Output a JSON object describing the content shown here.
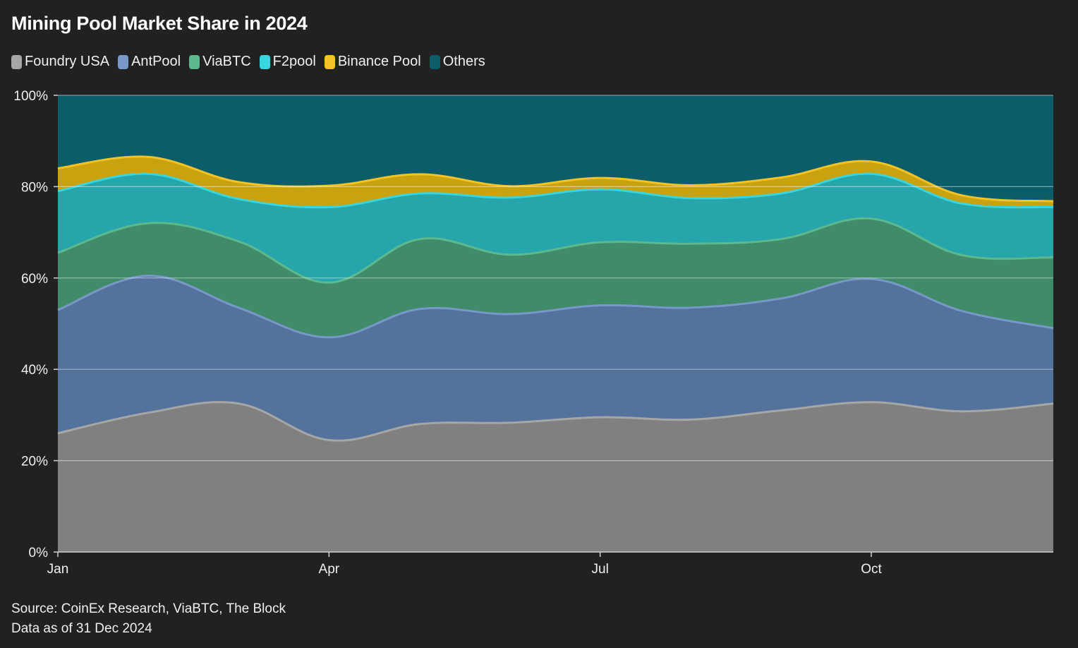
{
  "title": "Mining Pool Market Share in 2024",
  "footer": {
    "source": "Source: CoinEx Research, ViaBTC, The Block",
    "data_as_of": "Data as of 31 Dec 2024"
  },
  "chart_data": {
    "type": "area",
    "stacked": true,
    "title": "Mining Pool Market Share in 2024",
    "xlabel": "",
    "ylabel": "",
    "ylim": [
      0,
      100
    ],
    "y_ticks": [
      "0%",
      "20%",
      "40%",
      "60%",
      "80%",
      "100%"
    ],
    "x_ticks": [
      "Jan",
      "Apr",
      "Jul",
      "Oct"
    ],
    "x_tick_months": [
      1,
      4,
      7,
      10
    ],
    "x": [
      "Jan",
      "Feb",
      "Mar",
      "Apr",
      "May",
      "Jun",
      "Jul",
      "Aug",
      "Sep",
      "Oct",
      "Nov",
      "Dec"
    ],
    "x_months": [
      1,
      2,
      3,
      4,
      5,
      6,
      7,
      8,
      9,
      10,
      11,
      12
    ],
    "grid": true,
    "legend_position": "top-left",
    "series": [
      {
        "name": "Foundry USA",
        "color": "#808080",
        "line": "#a6a6a6",
        "values": [
          26,
          30.5,
          32.5,
          24.5,
          28,
          28.3,
          29.5,
          29,
          31,
          32.8,
          30.8,
          32.5
        ]
      },
      {
        "name": "AntPool",
        "color": "#53729c",
        "line": "#7898c8",
        "values": [
          27,
          30,
          21,
          22.5,
          25.2,
          23.8,
          24.5,
          24.5,
          24.5,
          27,
          22,
          16.5
        ]
      },
      {
        "name": "ViaBTC",
        "color": "#3f8b6a",
        "line": "#5cb98d",
        "values": [
          12.5,
          11.5,
          14.5,
          12,
          15.3,
          13,
          13.8,
          14,
          13,
          13.2,
          12.2,
          15.5
        ]
      },
      {
        "name": "F2pool",
        "color": "#26a5ab",
        "line": "#39d5df",
        "values": [
          13.5,
          10.8,
          9.3,
          16.5,
          10,
          12.5,
          11.6,
          10,
          10,
          9.8,
          11.3,
          11
        ]
      },
      {
        "name": "Binance Pool",
        "color": "#c9a210",
        "line": "#f3c226",
        "values": [
          5,
          3.7,
          3.7,
          4.7,
          4.2,
          2.5,
          2.5,
          2.8,
          3.5,
          2.7,
          1.8,
          1.3
        ]
      },
      {
        "name": "Others",
        "color": "#0a5d69",
        "line": "#0a5d69",
        "values": [
          16,
          13.5,
          19,
          19.8,
          17.3,
          19.9,
          18.1,
          19.7,
          18,
          14.5,
          21.9,
          23.2
        ]
      }
    ]
  }
}
